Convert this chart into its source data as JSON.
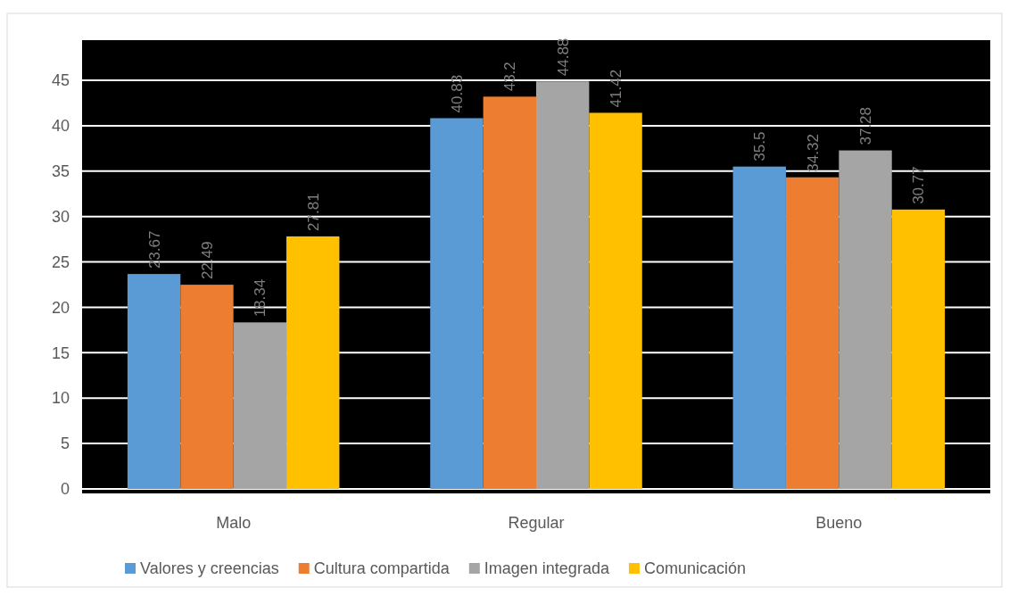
{
  "chart_data": {
    "type": "bar",
    "categories": [
      "Malo",
      "Regular",
      "Bueno"
    ],
    "series": [
      {
        "name": "Valores y creencias",
        "color": "#5b9bd5",
        "values": [
          23.67,
          40.83,
          35.5
        ]
      },
      {
        "name": "Cultura compartida",
        "color": "#ed7d31",
        "values": [
          22.49,
          43.2,
          34.32
        ]
      },
      {
        "name": "Imagen integrada",
        "color": "#a5a5a5",
        "values": [
          18.34,
          44.88,
          37.28
        ]
      },
      {
        "name": "Comunicación",
        "color": "#ffc000",
        "values": [
          27.81,
          41.42,
          30.77
        ]
      }
    ],
    "ylim": [
      0,
      45
    ],
    "yticks": [
      0,
      5,
      10,
      15,
      20,
      25,
      30,
      35,
      40,
      45
    ],
    "grid": "y",
    "legend": "bottom",
    "data_labels": true
  }
}
